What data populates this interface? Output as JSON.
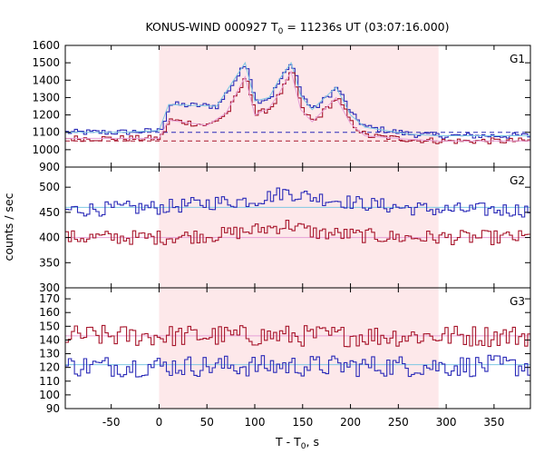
{
  "chart_data": {
    "type": "line",
    "title": "KONUS-WIND 000927 T",
    "title_sub": "0",
    "title_rest": " = 11236s UT (03:07:16.000)",
    "xlabel_main": "T - T",
    "xlabel_sub": "0",
    "xlabel_rest": ", s",
    "ylabel": "counts / sec",
    "xlim": [
      -98,
      388
    ],
    "xticks": [
      -50,
      0,
      50,
      100,
      150,
      200,
      250,
      300,
      350
    ],
    "highlight": {
      "x0": 0,
      "x1": 292,
      "color": "#fde8ea"
    },
    "colors": {
      "blue": "#2b2bb8",
      "red": "#a8172d",
      "lightblue": "#7ec8e3",
      "pink": "#e6a0d8"
    },
    "panels": [
      {
        "label": "G1",
        "ylim": [
          900,
          1600
        ],
        "yticks": [
          900,
          1000,
          1100,
          1200,
          1300,
          1400,
          1500,
          1600
        ],
        "baselines": [
          1100,
          1050
        ],
        "series": [
          {
            "color": "blue",
            "points": [
              [
                -98,
                1100
              ],
              [
                -40,
                1100
              ],
              [
                0,
                1110
              ],
              [
                10,
                1260
              ],
              [
                60,
                1250
              ],
              [
                90,
                1500
              ],
              [
                100,
                1280
              ],
              [
                115,
                1300
              ],
              [
                125,
                1400
              ],
              [
                138,
                1500
              ],
              [
                148,
                1310
              ],
              [
                160,
                1230
              ],
              [
                185,
                1360
              ],
              [
                200,
                1200
              ],
              [
                215,
                1130
              ],
              [
                260,
                1090
              ],
              [
                292,
                1080
              ],
              [
                388,
                1080
              ]
            ]
          },
          {
            "color": "red",
            "points": [
              [
                -98,
                1065
              ],
              [
                -40,
                1065
              ],
              [
                0,
                1065
              ],
              [
                10,
                1170
              ],
              [
                50,
                1140
              ],
              [
                70,
                1210
              ],
              [
                90,
                1420
              ],
              [
                100,
                1200
              ],
              [
                115,
                1240
              ],
              [
                125,
                1320
              ],
              [
                138,
                1450
              ],
              [
                148,
                1230
              ],
              [
                160,
                1160
              ],
              [
                185,
                1300
              ],
              [
                200,
                1150
              ],
              [
                215,
                1080
              ],
              [
                260,
                1060
              ],
              [
                292,
                1050
              ],
              [
                388,
                1050
              ]
            ]
          }
        ]
      },
      {
        "label": "G2",
        "ylim": [
          300,
          540
        ],
        "yticks": [
          300,
          350,
          400,
          450,
          500
        ],
        "baselines": [
          460,
          400
        ],
        "series": [
          {
            "color": "blue",
            "points": [
              [
                -98,
                455
              ],
              [
                0,
                460
              ],
              [
                60,
                470
              ],
              [
                100,
                475
              ],
              [
                130,
                490
              ],
              [
                160,
                480
              ],
              [
                200,
                470
              ],
              [
                250,
                460
              ],
              [
                292,
                455
              ],
              [
                388,
                455
              ]
            ]
          },
          {
            "color": "red",
            "points": [
              [
                -98,
                400
              ],
              [
                0,
                400
              ],
              [
                60,
                405
              ],
              [
                100,
                415
              ],
              [
                135,
                425
              ],
              [
                160,
                410
              ],
              [
                200,
                405
              ],
              [
                250,
                400
              ],
              [
                292,
                400
              ],
              [
                388,
                400
              ]
            ]
          }
        ]
      },
      {
        "label": "G3",
        "ylim": [
          90,
          178
        ],
        "yticks": [
          90,
          100,
          110,
          120,
          130,
          140,
          150,
          160,
          170
        ],
        "baselines": [
          122,
          143
        ],
        "series": [
          {
            "color": "red",
            "points": [
              [
                -98,
                143
              ],
              [
                0,
                143
              ],
              [
                100,
                143
              ],
              [
                200,
                143
              ],
              [
                300,
                143
              ],
              [
                388,
                143
              ]
            ]
          },
          {
            "color": "blue",
            "points": [
              [
                -98,
                121
              ],
              [
                0,
                121
              ],
              [
                100,
                121
              ],
              [
                200,
                121
              ],
              [
                300,
                121
              ],
              [
                388,
                121
              ]
            ]
          }
        ]
      }
    ]
  }
}
